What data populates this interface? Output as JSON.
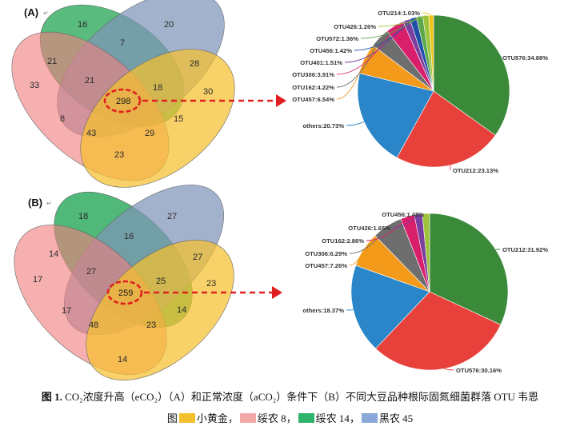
{
  "panels": [
    {
      "label": "(A)",
      "center_value": "298",
      "venn_numbers": [
        "16",
        "7",
        "20",
        "21",
        "28",
        "33",
        "21",
        "18",
        "30",
        "8",
        "15",
        "43",
        "29",
        "23"
      ],
      "pie": {
        "slices": [
          {
            "label": "OTU576:34.88%",
            "value": 34.88,
            "color": "#3a8a3a"
          },
          {
            "label": "OTU212:23.13%",
            "value": 23.13,
            "color": "#e8413c"
          },
          {
            "label": "others:20.73%",
            "value": 20.73,
            "color": "#2a86c8"
          },
          {
            "label": "OTU457:6.54%",
            "value": 6.54,
            "color": "#f39a1b"
          },
          {
            "label": "OTU162:4.22%",
            "value": 4.22,
            "color": "#6e6e6e"
          },
          {
            "label": "OTU306:3.91%",
            "value": 3.91,
            "color": "#d81f6b"
          },
          {
            "label": "OTU401:1.51%",
            "value": 1.51,
            "color": "#7b3fa0"
          },
          {
            "label": "OTU456:1.42%",
            "value": 1.42,
            "color": "#1f4fa6"
          },
          {
            "label": "OTU572:1.36%",
            "value": 1.36,
            "color": "#5aa84a"
          },
          {
            "label": "OTU426:1.26%",
            "value": 1.26,
            "color": "#9dc33b"
          },
          {
            "label": "OTU214:1.03%",
            "value": 1.03,
            "color": "#f0c419"
          }
        ]
      }
    },
    {
      "label": "(B)",
      "center_value": "259",
      "venn_numbers": [
        "18",
        "27",
        "16",
        "14",
        "27",
        "17",
        "27",
        "25",
        "23",
        "17",
        "14",
        "48",
        "23",
        "14"
      ],
      "pie": {
        "slices": [
          {
            "label": "OTU212:31.92%",
            "value": 31.92,
            "color": "#3a8a3a"
          },
          {
            "label": "OTU576:30.16%",
            "value": 30.16,
            "color": "#e8413c"
          },
          {
            "label": "others:18.37%",
            "value": 18.37,
            "color": "#2a86c8"
          },
          {
            "label": "OTU457:7.26%",
            "value": 7.26,
            "color": "#f39a1b"
          },
          {
            "label": "OTU306:6.29%",
            "value": 6.29,
            "color": "#6e6e6e"
          },
          {
            "label": "OTU162:2.86%",
            "value": 2.86,
            "color": "#d81f6b"
          },
          {
            "label": "OTU426:1.65%",
            "value": 1.65,
            "color": "#7b3fa0"
          },
          {
            "label": "OTU456:1.48%",
            "value": 1.48,
            "color": "#9dc33b"
          }
        ]
      }
    }
  ],
  "venn_colors": {
    "yellow": "#f5c02e",
    "pink": "#f08080",
    "green": "#2aa85a",
    "blue": "#7f94b8"
  },
  "highlight_color": "#e02020",
  "caption": {
    "fig_label": "图 1.",
    "line1": "CO₂浓度升高（eCO₂）（A）和正常浓度（aCO₂）条件下（B）不同大豆品种根际固氮细菌群落 OTU 韦恩",
    "line2_prefix": "图",
    "legend": [
      {
        "color": "#f5c02e",
        "text": "小黄金，"
      },
      {
        "color": "#f4a7a7",
        "text": "绥农 8，"
      },
      {
        "color": "#2db36b",
        "text": "绥农 14，"
      },
      {
        "color": "#8aa9d8",
        "text": "黑农 45"
      }
    ]
  }
}
